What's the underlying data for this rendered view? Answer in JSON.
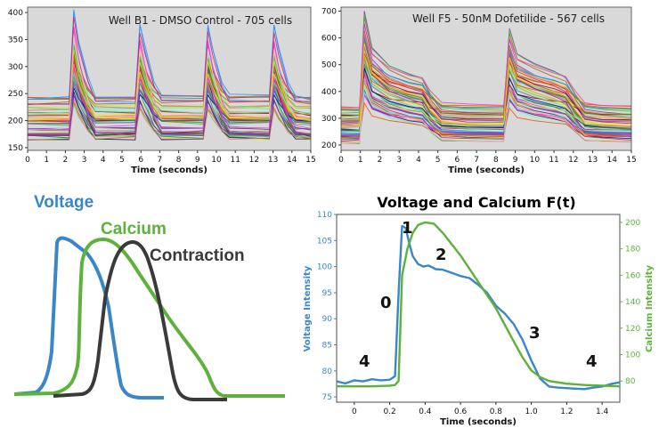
{
  "chart_data": [
    {
      "type": "line",
      "title": "Well B1 - DMSO Control - 705 cells",
      "xlabel": "Time (seconds)",
      "ylabel": "",
      "xlim": [
        0,
        15
      ],
      "ylim": [
        145,
        410
      ],
      "x_ticks": [
        0,
        1,
        2,
        3,
        4,
        5,
        6,
        7,
        8,
        9,
        10,
        11,
        12,
        13,
        14,
        15
      ],
      "y_ticks": [
        150,
        200,
        250,
        300,
        350,
        400
      ],
      "background": "#d9d9d9",
      "grid": false,
      "n_traces_drawn": 60,
      "baseline_range": [
        160,
        245
      ],
      "peak_times": [
        2.5,
        6.0,
        9.6,
        13.1
      ],
      "peak_range": [
        250,
        395
      ],
      "series": [
        {
          "x": [
            0,
            2.2,
            2.45,
            2.7,
            3.2,
            3.6,
            5.7,
            5.95,
            6.2,
            6.7,
            7.1,
            9.3,
            9.55,
            9.8,
            10.3,
            10.7,
            12.8,
            13.05,
            13.3,
            13.8,
            14.2,
            15
          ],
          "y": [
            232,
            232,
            395,
            340,
            270,
            236,
            236,
            370,
            330,
            265,
            236,
            236,
            368,
            325,
            262,
            236,
            236,
            368,
            325,
            262,
            236,
            232
          ]
        }
      ]
    },
    {
      "type": "line",
      "title": "Well F5 - 50nM Dofetilide - 567 cells",
      "xlabel": "Time (seconds)",
      "ylabel": "",
      "xlim": [
        0,
        15
      ],
      "ylim": [
        180,
        715
      ],
      "x_ticks": [
        0,
        1,
        2,
        3,
        4,
        5,
        6,
        7,
        8,
        9,
        10,
        11,
        12,
        13,
        14,
        15
      ],
      "y_ticks": [
        200,
        300,
        400,
        500,
        600,
        700
      ],
      "background": "#d9d9d9",
      "grid": false,
      "n_traces_drawn": 60,
      "baseline_range": [
        205,
        345
      ],
      "peak_times": [
        1.2,
        8.7
      ],
      "peak_range": [
        360,
        690
      ],
      "series": [
        {
          "x": [
            0,
            0.95,
            1.2,
            1.6,
            2.5,
            3.5,
            4.2,
            4.6,
            5.2,
            6.5,
            8.4,
            8.7,
            9.1,
            10.0,
            11.0,
            11.6,
            12.1,
            12.6,
            13.5,
            15
          ],
          "y": [
            330,
            330,
            690,
            560,
            500,
            470,
            455,
            400,
            350,
            342,
            340,
            630,
            540,
            505,
            480,
            460,
            400,
            350,
            340,
            335
          ]
        }
      ]
    },
    {
      "type": "diagram",
      "labels": {
        "voltage": "Voltage",
        "calcium": "Calcium",
        "contraction": "Contraction"
      },
      "colors": {
        "voltage": "#3a86c8",
        "calcium": "#5cb23a",
        "contraction": "#3a3a3a"
      }
    },
    {
      "type": "line",
      "title": "Voltage and Calcium F(t)",
      "xlabel": "Time (seconds)",
      "ylabel": "Voltage Intensity",
      "y2label": "Calcium Intensity",
      "xlim": [
        -0.1,
        1.5
      ],
      "ylim": [
        74,
        110
      ],
      "y2lim": [
        64,
        206
      ],
      "x_ticks": [
        0,
        0.2,
        0.4,
        0.6,
        0.8,
        1.0,
        1.2,
        1.4
      ],
      "x_tick_labels": [
        "0",
        "0.2",
        "0.4",
        "0.6",
        "0.8",
        "1.0",
        "1.2",
        "1.4"
      ],
      "y_ticks": [
        75,
        80,
        85,
        90,
        95,
        100,
        105,
        110
      ],
      "y2_ticks": [
        80,
        100,
        120,
        140,
        160,
        180,
        200
      ],
      "phase_labels": [
        "0",
        "1",
        "2",
        "3",
        "4",
        "4"
      ],
      "series": [
        {
          "name": "Voltage",
          "axis": "left",
          "color": "#3a86c8",
          "x": [
            -0.1,
            -0.05,
            0,
            0.05,
            0.1,
            0.15,
            0.2,
            0.23,
            0.25,
            0.27,
            0.29,
            0.31,
            0.33,
            0.36,
            0.39,
            0.42,
            0.46,
            0.5,
            0.55,
            0.6,
            0.65,
            0.7,
            0.75,
            0.8,
            0.85,
            0.9,
            0.95,
            1.0,
            1.05,
            1.1,
            1.15,
            1.2,
            1.25,
            1.3,
            1.35,
            1.4,
            1.45,
            1.5
          ],
          "y": [
            78,
            77.6,
            78.2,
            78,
            78.4,
            78.2,
            78.3,
            79,
            95,
            107.8,
            107.4,
            104.5,
            102,
            100.5,
            100,
            100.2,
            99.5,
            99.4,
            98.8,
            98.2,
            97.8,
            96.5,
            95,
            92.5,
            91,
            89,
            86,
            82,
            78.5,
            77,
            76.8,
            76.7,
            76.6,
            76.5,
            76.8,
            77,
            77.5,
            77.8
          ]
        },
        {
          "name": "Calcium",
          "axis": "right",
          "color": "#5cb23a",
          "x": [
            -0.1,
            0,
            0.1,
            0.2,
            0.23,
            0.25,
            0.27,
            0.3,
            0.33,
            0.36,
            0.4,
            0.45,
            0.5,
            0.6,
            0.7,
            0.8,
            0.9,
            0.95,
            1.0,
            1.05,
            1.1,
            1.2,
            1.3,
            1.4,
            1.5
          ],
          "y": [
            76,
            76,
            76,
            76.5,
            77,
            80,
            160,
            180,
            192,
            198,
            200,
            199,
            192,
            175,
            155,
            135,
            110,
            98,
            88,
            83,
            80,
            78,
            77,
            76.5,
            76
          ]
        }
      ]
    }
  ]
}
